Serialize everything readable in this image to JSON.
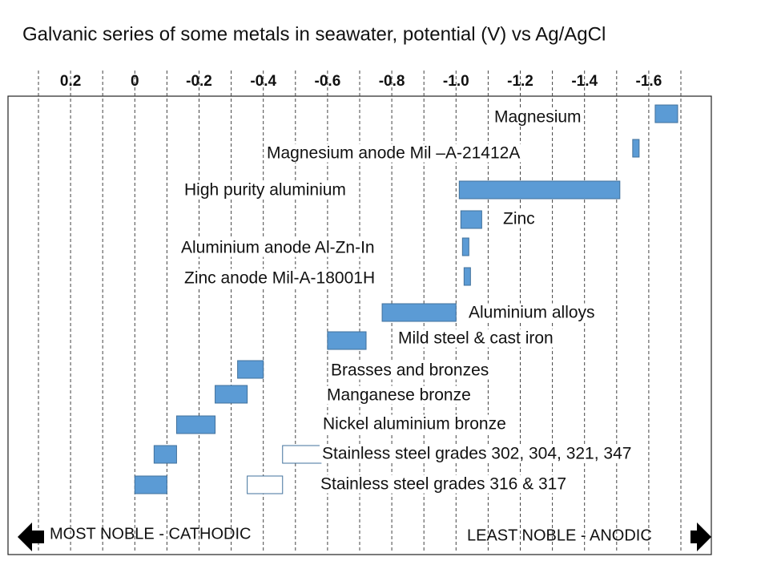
{
  "chart_data": {
    "type": "range-bar",
    "title": "Galvanic series of some metals in seawater, potential (V) vs Ag/AgCl",
    "xlim": [
      0.3,
      -1.7
    ],
    "xticks": [
      0.2,
      0,
      -0.2,
      -0.4,
      -0.6,
      -0.8,
      {
        "value": -1,
        "label": "-1.0"
      },
      -1.2,
      -1.4,
      -1.6
    ],
    "grid_lines": [
      0.3,
      0.2,
      0.1,
      0,
      -0.1,
      -0.2,
      -0.3,
      -0.4,
      -0.5,
      -0.6,
      -0.7,
      -0.8,
      -0.9,
      -1,
      -1.1,
      -1.2,
      -1.3,
      -1.4,
      -1.5,
      -1.6,
      -1.7
    ],
    "rows": [
      {
        "label": "Magnesium",
        "ranges": [
          {
            "values": [
              -1.62,
              -1.69
            ],
            "color": "#5b9bd5"
          }
        ]
      },
      {
        "label": "Magnesium anode Mil –A-21412A",
        "ranges": [
          {
            "values": [
              -1.55,
              -1.57
            ],
            "color": "#5b9bd5"
          }
        ]
      },
      {
        "label": "High purity aluminium",
        "ranges": [
          {
            "values": [
              -1.01,
              -1.51
            ],
            "color": "#5b9bd5"
          }
        ]
      },
      {
        "label": "Zinc",
        "ranges": [
          {
            "values": [
              -1.015,
              -1.08
            ],
            "color": "#5b9bd5"
          }
        ]
      },
      {
        "label": "Aluminium anode Al-Zn-In",
        "ranges": [
          {
            "values": [
              -1.02,
              -1.04
            ],
            "color": "#5b9bd5"
          }
        ]
      },
      {
        "label": "Zinc anode Mil-A-18001H",
        "ranges": [
          {
            "values": [
              -1.025,
              -1.045
            ],
            "color": "#5b9bd5"
          }
        ]
      },
      {
        "label": "Aluminium alloys",
        "ranges": [
          {
            "values": [
              -0.77,
              -1.0
            ],
            "color": "#5b9bd5"
          }
        ]
      },
      {
        "label": "Mild steel & cast iron",
        "ranges": [
          {
            "values": [
              -0.6,
              -0.72
            ],
            "color": "#5b9bd5"
          }
        ]
      },
      {
        "label": "Brasses and bronzes",
        "ranges": [
          {
            "values": [
              -0.32,
              -0.4
            ],
            "color": "#5b9bd5"
          }
        ]
      },
      {
        "label": "Manganese bronze",
        "ranges": [
          {
            "values": [
              -0.25,
              -0.35
            ],
            "color": "#5b9bd5"
          }
        ]
      },
      {
        "label": "Nickel aluminium bronze",
        "ranges": [
          {
            "values": [
              -0.13,
              -0.25
            ],
            "color": "#5b9bd5"
          }
        ]
      },
      {
        "label": "Stainless steel grades 302, 304, 321, 347",
        "ranges": [
          {
            "values": [
              -0.06,
              -0.13
            ],
            "color": "#5b9bd5"
          },
          {
            "values": [
              -0.46,
              -0.58
            ],
            "color": "#ffffff"
          }
        ]
      },
      {
        "label": "Stainless steel grades 316 & 317",
        "ranges": [
          {
            "values": [
              0,
              -0.1
            ],
            "color": "#5b9bd5"
          },
          {
            "values": [
              -0.35,
              -0.46
            ],
            "color": "#ffffff"
          }
        ]
      }
    ],
    "left_note": "MOST NOBLE - CATHODIC",
    "right_note": "LEAST NOBLE - ANODIC"
  }
}
